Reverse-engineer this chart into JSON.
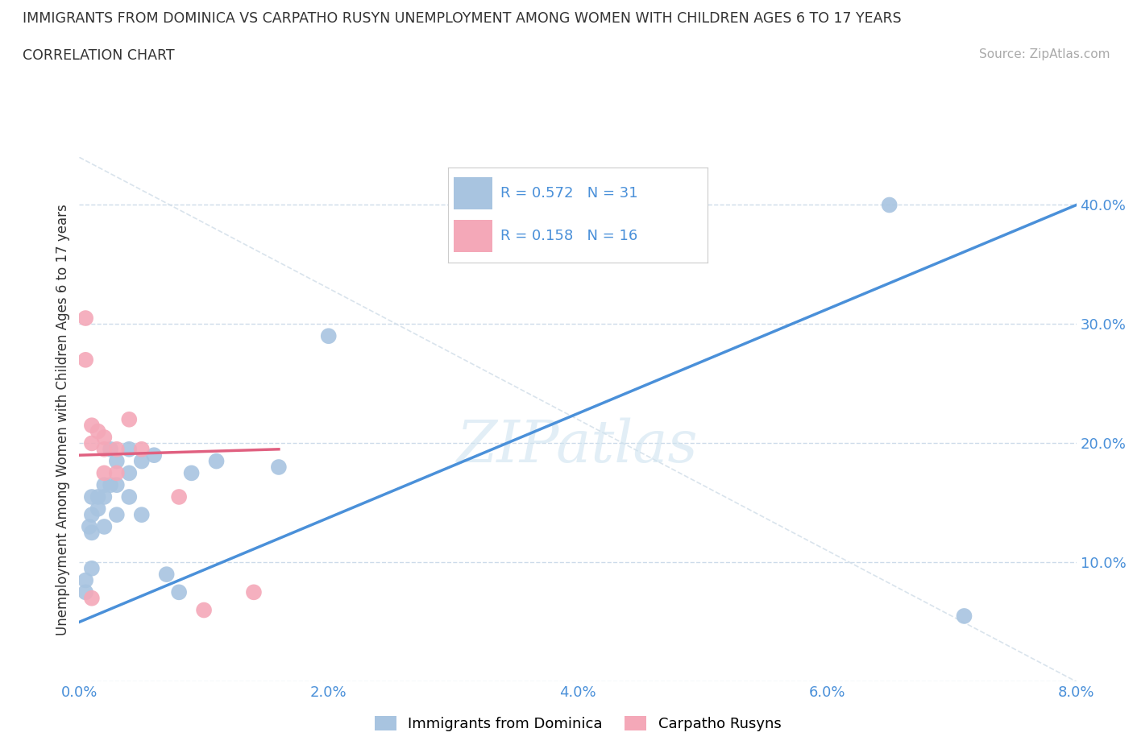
{
  "title": "IMMIGRANTS FROM DOMINICA VS CARPATHO RUSYN UNEMPLOYMENT AMONG WOMEN WITH CHILDREN AGES 6 TO 17 YEARS",
  "subtitle": "CORRELATION CHART",
  "source": "Source: ZipAtlas.com",
  "ylabel": "Unemployment Among Women with Children Ages 6 to 17 years",
  "watermark": "ZIPatlas",
  "legend_labels": [
    "Immigrants from Dominica",
    "Carpatho Rusyns"
  ],
  "r_blue": 0.572,
  "n_blue": 31,
  "r_pink": 0.158,
  "n_pink": 16,
  "blue_color": "#a8c4e0",
  "pink_color": "#f4a8b8",
  "blue_line_color": "#4a90d9",
  "pink_line_color": "#e06080",
  "diag_line_color": "#d0dde8",
  "background_color": "#ffffff",
  "xlim": [
    0.0,
    0.08
  ],
  "ylim": [
    0.0,
    0.44
  ],
  "xticks": [
    0.0,
    0.02,
    0.04,
    0.06,
    0.08
  ],
  "yticks": [
    0.0,
    0.1,
    0.2,
    0.3,
    0.4
  ],
  "xtick_labels": [
    "0.0%",
    "2.0%",
    "4.0%",
    "6.0%",
    "8.0%"
  ],
  "ytick_labels": [
    "",
    "10.0%",
    "20.0%",
    "30.0%",
    "40.0%"
  ],
  "blue_x": [
    0.0005,
    0.0005,
    0.0008,
    0.001,
    0.001,
    0.001,
    0.001,
    0.0015,
    0.0015,
    0.002,
    0.002,
    0.002,
    0.0025,
    0.0025,
    0.003,
    0.003,
    0.003,
    0.004,
    0.004,
    0.004,
    0.005,
    0.005,
    0.006,
    0.007,
    0.008,
    0.009,
    0.011,
    0.016,
    0.02,
    0.065,
    0.071
  ],
  "blue_y": [
    0.085,
    0.075,
    0.13,
    0.155,
    0.14,
    0.125,
    0.095,
    0.155,
    0.145,
    0.165,
    0.155,
    0.13,
    0.195,
    0.165,
    0.185,
    0.165,
    0.14,
    0.195,
    0.175,
    0.155,
    0.185,
    0.14,
    0.19,
    0.09,
    0.075,
    0.175,
    0.185,
    0.18,
    0.29,
    0.4,
    0.055
  ],
  "pink_x": [
    0.0005,
    0.0005,
    0.001,
    0.001,
    0.001,
    0.0015,
    0.002,
    0.002,
    0.002,
    0.003,
    0.003,
    0.004,
    0.005,
    0.008,
    0.01,
    0.014
  ],
  "pink_y": [
    0.305,
    0.27,
    0.215,
    0.2,
    0.07,
    0.21,
    0.205,
    0.195,
    0.175,
    0.195,
    0.175,
    0.22,
    0.195,
    0.155,
    0.06,
    0.075
  ],
  "blue_line_x": [
    0.0,
    0.08
  ],
  "blue_line_y": [
    0.05,
    0.4
  ],
  "pink_line_x": [
    0.0,
    0.016
  ],
  "pink_line_y": [
    0.19,
    0.195
  ]
}
